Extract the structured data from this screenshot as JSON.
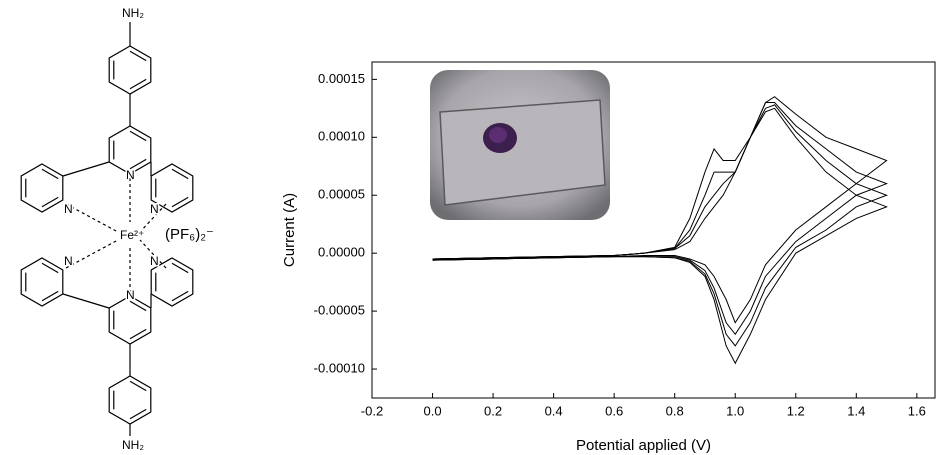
{
  "structure": {
    "labels": {
      "amine_top": "NH₂",
      "amine_bottom": "NH₂",
      "nitrogen": "N",
      "metal": "Fe²⁺",
      "counterion": "(PF₆)₂⁻"
    }
  },
  "chart_data": {
    "type": "line",
    "xlabel": "Potential applied (V)",
    "ylabel": "Current (A)",
    "xlim": [
      -0.2,
      1.66
    ],
    "ylim": [
      -0.000125,
      0.000165
    ],
    "xticks": [
      -0.2,
      {
        "value": 0,
        "label": "0.0"
      },
      0.2,
      0.4,
      0.6,
      0.8,
      {
        "value": 1,
        "label": "1.0"
      },
      1.2,
      1.4,
      1.6
    ],
    "yticks": [
      {
        "value": -0.0001,
        "label": "-0.00010"
      },
      -5e-05,
      {
        "value": 0,
        "label": "0.00000"
      },
      5e-05,
      {
        "value": 0.0001,
        "label": "0.00010"
      },
      0.00015
    ],
    "x": [
      0,
      0.2,
      0.4,
      0.6,
      0.7,
      0.8,
      0.85,
      0.9,
      0.93,
      0.96,
      1.0,
      1.05,
      1.1,
      1.13,
      1.2,
      1.3,
      1.4,
      1.5,
      1.4,
      1.3,
      1.2,
      1.1,
      1.05,
      1.0,
      0.97,
      0.93,
      0.9,
      0.85,
      0.8,
      0.7,
      0.6,
      0.4,
      0.2,
      0
    ],
    "series": [
      {
        "color": "#000000",
        "values": [
          -5e-06,
          -4e-06,
          -3e-06,
          -2e-06,
          0,
          5e-06,
          3e-05,
          7e-05,
          9e-05,
          8e-05,
          8e-05,
          0.0001,
          0.00013,
          0.000135,
          0.00012,
          0.0001,
          9e-05,
          8e-05,
          6e-05,
          4e-05,
          2e-05,
          -1e-05,
          -4e-05,
          -6e-05,
          -4e-05,
          -2e-05,
          -1e-05,
          -5e-06,
          -2e-06,
          -2e-06,
          -3e-06,
          -4e-06,
          -5e-06,
          -6e-06
        ]
      },
      {
        "color": "#000000",
        "values": [
          -5e-06,
          -4e-06,
          -3e-06,
          -2e-06,
          0,
          4e-06,
          2e-05,
          5e-05,
          7e-05,
          7e-05,
          7e-05,
          0.0001,
          0.00013,
          0.00013,
          0.00011,
          9e-05,
          7e-05,
          6e-05,
          5e-05,
          3e-05,
          1e-05,
          -2e-05,
          -5e-05,
          -7e-05,
          -6e-05,
          -3e-05,
          -1.5e-05,
          -6e-06,
          -3e-06,
          -3e-06,
          -3e-06,
          -4e-06,
          -5e-06,
          -6e-06
        ]
      },
      {
        "color": "#000000",
        "values": [
          -5e-06,
          -4e-06,
          -3e-06,
          -2e-06,
          0,
          4e-06,
          1.5e-05,
          4e-05,
          5e-05,
          6e-05,
          7e-05,
          0.0001,
          0.000125,
          0.000128,
          0.000105,
          8e-05,
          6e-05,
          5e-05,
          4e-05,
          2e-05,
          5e-06,
          -3e-05,
          -6e-05,
          -8e-05,
          -7e-05,
          -3.5e-05,
          -1.8e-05,
          -7e-06,
          -4e-06,
          -3e-06,
          -3e-06,
          -4e-06,
          -5e-06,
          -6e-06
        ]
      },
      {
        "color": "#000000",
        "values": [
          -5e-06,
          -4e-06,
          -3e-06,
          -2e-06,
          0,
          3e-06,
          1e-05,
          3e-05,
          4e-05,
          5e-05,
          7e-05,
          0.0001,
          0.000122,
          0.000125,
          0.0001,
          7e-05,
          5e-05,
          4e-05,
          3e-05,
          1.5e-05,
          0,
          -4e-05,
          -7e-05,
          -9.5e-05,
          -8e-05,
          -4e-05,
          -2e-05,
          -8e-06,
          -4e-06,
          -3e-06,
          -3e-06,
          -4e-06,
          -5e-06,
          -6e-06
        ]
      }
    ]
  }
}
